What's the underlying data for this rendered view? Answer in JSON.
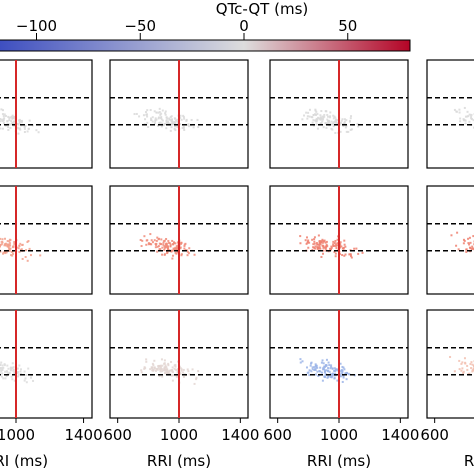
{
  "chart_data": {
    "type": "scatter",
    "layout": "grid of 3 rows x 4 columns of density scatter panels, cropped on left and right",
    "colorbar": {
      "label": "QTc-QT (ms)",
      "ticks": [
        -100,
        -50,
        0,
        50
      ],
      "tick_labels": [
        "−100",
        "−50",
        "0",
        "50"
      ],
      "range": [
        -120,
        80
      ],
      "colormap": [
        "#3b4cc0",
        "#dddddd",
        "#b40426"
      ]
    },
    "x_axis": {
      "label": "RRI (ms)",
      "range": [
        550,
        1450
      ],
      "ticks": [
        600,
        1000,
        1400
      ],
      "tick_labels": [
        "600",
        "1000",
        "1400"
      ]
    },
    "vertical_line_x": 1000,
    "vertical_line_color": "#d62728",
    "horizontal_dashed_lines_y": [
      0.65,
      0.4
    ],
    "panels": [
      {
        "row": 0,
        "col": 0,
        "qtc_qt_color": "#d9d9d9"
      },
      {
        "row": 0,
        "col": 1,
        "qtc_qt_color": "#d9d9d9"
      },
      {
        "row": 0,
        "col": 2,
        "qtc_qt_color": "#d9d9d9"
      },
      {
        "row": 0,
        "col": 3,
        "qtc_qt_color": "#d9d9d9"
      },
      {
        "row": 1,
        "col": 0,
        "qtc_qt_color": "#f2a08c"
      },
      {
        "row": 1,
        "col": 1,
        "qtc_qt_color": "#f08a78"
      },
      {
        "row": 1,
        "col": 2,
        "qtc_qt_color": "#ee8070"
      },
      {
        "row": 1,
        "col": 3,
        "qtc_qt_color": "#ee8070"
      },
      {
        "row": 2,
        "col": 0,
        "qtc_qt_color": "#dcdcdc"
      },
      {
        "row": 2,
        "col": 1,
        "qtc_qt_color": "#e3d6d2"
      },
      {
        "row": 2,
        "col": 2,
        "qtc_qt_color": "#9bb4e8"
      },
      {
        "row": 2,
        "col": 3,
        "qtc_qt_color": "#f2c0b0"
      }
    ]
  }
}
